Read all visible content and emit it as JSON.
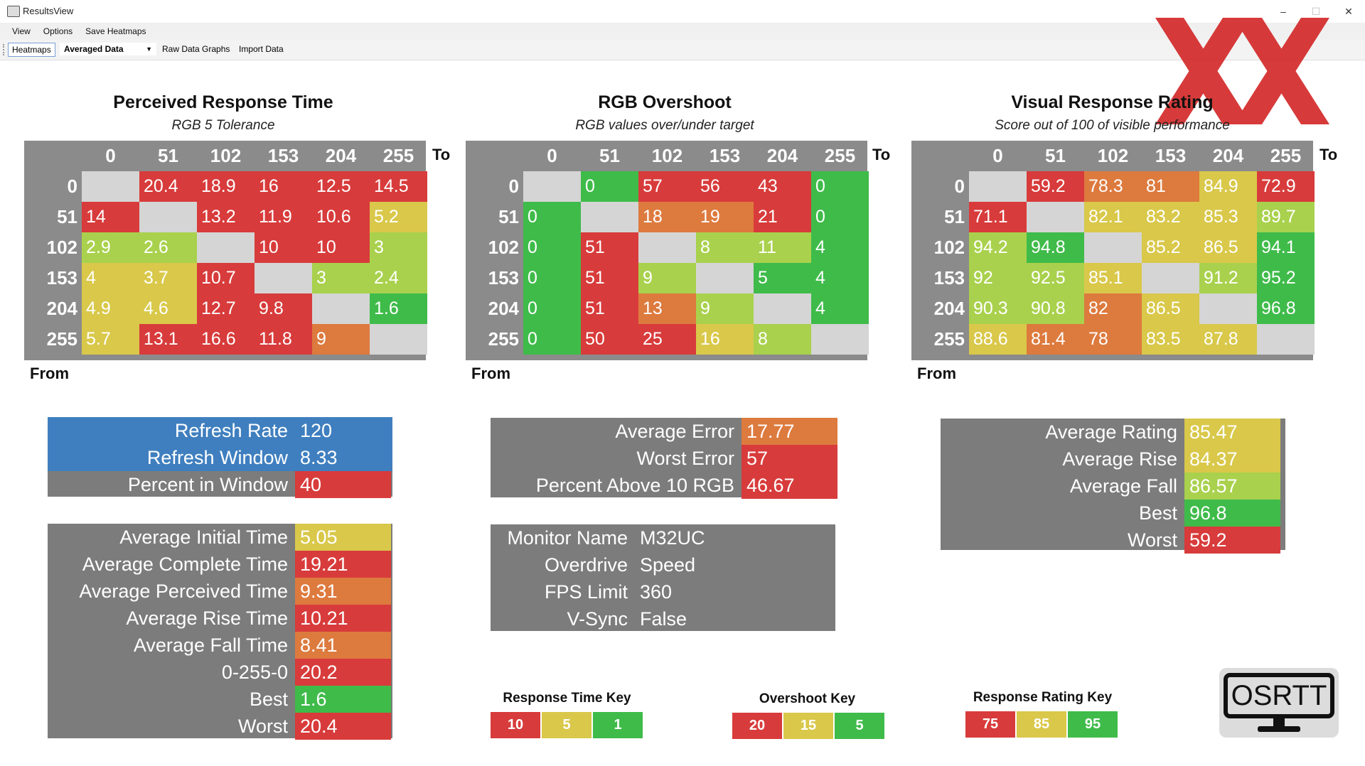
{
  "window": {
    "title": "ResultsView",
    "controls": [
      "–",
      "☐",
      "✕"
    ]
  },
  "menu": [
    "View",
    "Options",
    "Save Heatmaps"
  ],
  "toolbar": {
    "heatmaps_tab": "Heatmaps",
    "dropdown_value": "Averaged Data",
    "raw_graphs": "Raw Data Graphs",
    "import_data": "Import Data"
  },
  "colors": {
    "red": "#d83b3b",
    "orange": "#dd7a3e",
    "yellow": "#d9c84a",
    "lime": "#a9d14d",
    "green": "#3fbb4a",
    "gray": "#8b8b8b",
    "empty": "#d5d5d5",
    "blue": "#3f7fbf",
    "panel": "#7c7c7c"
  },
  "heatmaps": [
    {
      "title": "Perceived Response Time",
      "subtitle": "RGB 5 Tolerance",
      "to_label": "To",
      "from_label": "From",
      "cols": [
        "0",
        "51",
        "102",
        "153",
        "204",
        "255"
      ],
      "rows": [
        "0",
        "51",
        "102",
        "153",
        "204",
        "255"
      ],
      "values": [
        [
          "",
          "20.4",
          "18.9",
          "16",
          "12.5",
          "14.5"
        ],
        [
          "14",
          "",
          "13.2",
          "11.9",
          "10.6",
          "5.2"
        ],
        [
          "2.9",
          "2.6",
          "",
          "10",
          "10",
          "3"
        ],
        [
          "4",
          "3.7",
          "10.7",
          "",
          "3",
          "2.4"
        ],
        [
          "4.9",
          "4.6",
          "12.7",
          "9.8",
          "",
          "1.6"
        ],
        [
          "5.7",
          "13.1",
          "16.6",
          "11.8",
          "9",
          ""
        ]
      ],
      "cell_colors": [
        [
          "empty",
          "red",
          "red",
          "red",
          "red",
          "red"
        ],
        [
          "red",
          "empty",
          "red",
          "red",
          "red",
          "yellow"
        ],
        [
          "lime",
          "lime",
          "empty",
          "red",
          "red",
          "lime"
        ],
        [
          "yellow",
          "yellow",
          "red",
          "empty",
          "lime",
          "lime"
        ],
        [
          "yellow",
          "yellow",
          "red",
          "red",
          "empty",
          "green"
        ],
        [
          "yellow",
          "red",
          "red",
          "red",
          "orange",
          "empty"
        ]
      ]
    },
    {
      "title": "RGB Overshoot",
      "subtitle": "RGB values over/under target",
      "to_label": "To",
      "from_label": "From",
      "cols": [
        "0",
        "51",
        "102",
        "153",
        "204",
        "255"
      ],
      "rows": [
        "0",
        "51",
        "102",
        "153",
        "204",
        "255"
      ],
      "values": [
        [
          "",
          "0",
          "57",
          "56",
          "43",
          "0"
        ],
        [
          "0",
          "",
          "18",
          "19",
          "21",
          "0"
        ],
        [
          "0",
          "51",
          "",
          "8",
          "11",
          "4"
        ],
        [
          "0",
          "51",
          "9",
          "",
          "5",
          "4"
        ],
        [
          "0",
          "51",
          "13",
          "9",
          "",
          "4"
        ],
        [
          "0",
          "50",
          "25",
          "16",
          "8",
          ""
        ]
      ],
      "cell_colors": [
        [
          "empty",
          "green",
          "red",
          "red",
          "red",
          "green"
        ],
        [
          "green",
          "empty",
          "orange",
          "orange",
          "red",
          "green"
        ],
        [
          "green",
          "red",
          "empty",
          "lime",
          "lime",
          "green"
        ],
        [
          "green",
          "red",
          "lime",
          "empty",
          "green",
          "green"
        ],
        [
          "green",
          "red",
          "orange",
          "lime",
          "empty",
          "green"
        ],
        [
          "green",
          "red",
          "red",
          "yellow",
          "lime",
          "empty"
        ]
      ]
    },
    {
      "title": "Visual Response Rating",
      "subtitle": "Score out of 100 of visible performance",
      "to_label": "To",
      "from_label": "From",
      "cols": [
        "0",
        "51",
        "102",
        "153",
        "204",
        "255"
      ],
      "rows": [
        "0",
        "51",
        "102",
        "153",
        "204",
        "255"
      ],
      "values": [
        [
          "",
          "59.2",
          "78.3",
          "81",
          "84.9",
          "72.9"
        ],
        [
          "71.1",
          "",
          "82.1",
          "83.2",
          "85.3",
          "89.7"
        ],
        [
          "94.2",
          "94.8",
          "",
          "85.2",
          "86.5",
          "94.1"
        ],
        [
          "92",
          "92.5",
          "85.1",
          "",
          "91.2",
          "95.2"
        ],
        [
          "90.3",
          "90.8",
          "82",
          "86.5",
          "",
          "96.8"
        ],
        [
          "88.6",
          "81.4",
          "78",
          "83.5",
          "87.8",
          ""
        ]
      ],
      "cell_colors": [
        [
          "empty",
          "red",
          "orange",
          "orange",
          "yellow",
          "red"
        ],
        [
          "red",
          "empty",
          "yellow",
          "yellow",
          "yellow",
          "lime"
        ],
        [
          "lime",
          "green",
          "empty",
          "yellow",
          "yellow",
          "green"
        ],
        [
          "lime",
          "lime",
          "yellow",
          "empty",
          "lime",
          "green"
        ],
        [
          "lime",
          "lime",
          "orange",
          "yellow",
          "empty",
          "green"
        ],
        [
          "yellow",
          "orange",
          "orange",
          "yellow",
          "yellow",
          "empty"
        ]
      ]
    }
  ],
  "refresh_panel": {
    "rows": [
      {
        "label": "Refresh Rate",
        "value": "120",
        "color": "blue"
      },
      {
        "label": "Refresh Window",
        "value": "8.33",
        "color": "blue"
      },
      {
        "label": "Percent in Window",
        "value": "40",
        "color": "red"
      }
    ]
  },
  "time_panel": {
    "rows": [
      {
        "label": "Average Initial Time",
        "value": "5.05",
        "color": "yellow"
      },
      {
        "label": "Average Complete Time",
        "value": "19.21",
        "color": "red"
      },
      {
        "label": "Average Perceived Time",
        "value": "9.31",
        "color": "orange"
      },
      {
        "label": "Average Rise Time",
        "value": "10.21",
        "color": "red"
      },
      {
        "label": "Average Fall Time",
        "value": "8.41",
        "color": "orange"
      },
      {
        "label": "0-255-0",
        "value": "20.2",
        "color": "red"
      },
      {
        "label": "Best",
        "value": "1.6",
        "color": "green"
      },
      {
        "label": "Worst",
        "value": "20.4",
        "color": "red"
      }
    ]
  },
  "error_panel": {
    "rows": [
      {
        "label": "Average Error",
        "value": "17.77",
        "color": "orange"
      },
      {
        "label": "Worst Error",
        "value": "57",
        "color": "red"
      },
      {
        "label": "Percent Above 10 RGB",
        "value": "46.67",
        "color": "red"
      }
    ]
  },
  "monitor_panel": {
    "rows": [
      {
        "label": "Monitor Name",
        "value": "M32UC"
      },
      {
        "label": "Overdrive",
        "value": "Speed"
      },
      {
        "label": "FPS Limit",
        "value": "360"
      },
      {
        "label": "V-Sync",
        "value": "False"
      }
    ]
  },
  "rating_panel": {
    "rows": [
      {
        "label": "Average Rating",
        "value": "85.47",
        "color": "yellow"
      },
      {
        "label": "Average Rise",
        "value": "84.37",
        "color": "yellow"
      },
      {
        "label": "Average Fall",
        "value": "86.57",
        "color": "lime"
      },
      {
        "label": "Best",
        "value": "96.8",
        "color": "green"
      },
      {
        "label": "Worst",
        "value": "59.2",
        "color": "red"
      }
    ]
  },
  "keys": [
    {
      "title": "Response Time Key",
      "items": [
        {
          "text": "10",
          "color": "red"
        },
        {
          "text": "5",
          "color": "yellow"
        },
        {
          "text": "1",
          "color": "green"
        }
      ]
    },
    {
      "title": "Overshoot Key",
      "items": [
        {
          "text": "20",
          "color": "red"
        },
        {
          "text": "15",
          "color": "yellow"
        },
        {
          "text": "5",
          "color": "green"
        }
      ]
    },
    {
      "title": "Response Rating Key",
      "items": [
        {
          "text": "75",
          "color": "red"
        },
        {
          "text": "85",
          "color": "yellow"
        },
        {
          "text": "95",
          "color": "green"
        }
      ]
    }
  ],
  "logo": {
    "text": "OSRTT"
  }
}
